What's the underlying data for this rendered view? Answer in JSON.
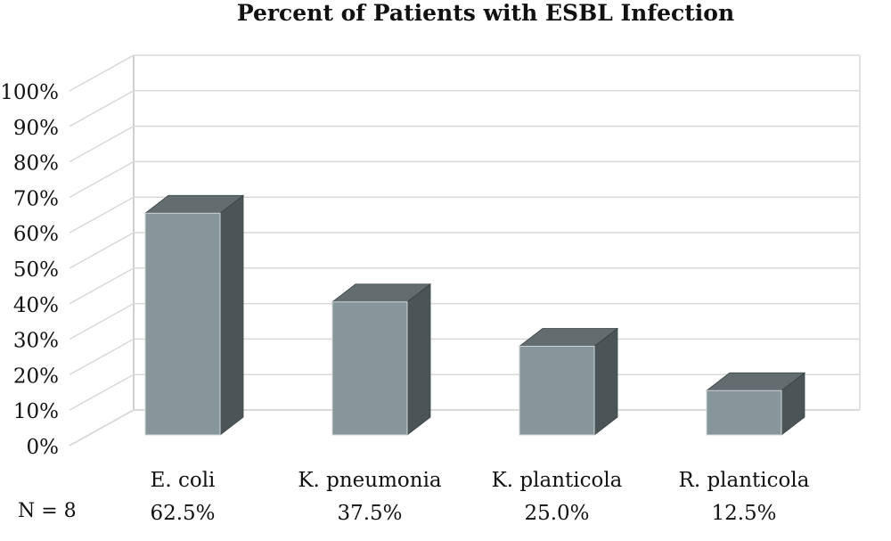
{
  "chart_data": {
    "type": "bar",
    "title": "Percent of Patients with ESBL Infection",
    "categories": [
      "E. coli",
      "K. pneumonia",
      "K. planticola",
      "R. planticola"
    ],
    "values": [
      62.5,
      37.5,
      25.0,
      12.5
    ],
    "value_labels": [
      "62.5%",
      "37.5%",
      "25.0%",
      "12.5%"
    ],
    "y_ticks": [
      "0%",
      "10%",
      "20%",
      "30%",
      "40%",
      "50%",
      "60%",
      "70%",
      "80%",
      "90%",
      "100%"
    ],
    "ylim": [
      0,
      100
    ],
    "grid": true,
    "style": "3d-column",
    "n_label": "N = 8",
    "colors": {
      "bar_front": "#87969a",
      "bar_top": "#636d70",
      "bar_side": "#4b5558",
      "grid": "#d9d9d9",
      "wall": "#bfbfbf"
    }
  }
}
